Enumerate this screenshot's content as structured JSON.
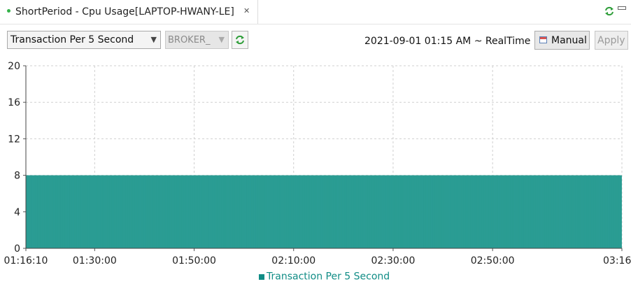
{
  "tab": {
    "title": "ShortPeriod - Cpu Usage[LAPTOP-HWANY-LE]",
    "close_icon": "close-icon"
  },
  "toolbar": {
    "metric_select": "Transaction Per 5 Second",
    "broker_select": "BROKER_",
    "date_range": "2021-09-01 01:15 AM ~ RealTime",
    "manual_label": "Manual",
    "apply_label": "Apply"
  },
  "colors": {
    "series": "#2a9c93",
    "series_dark": "#118d86",
    "grid": "#cfcfcf"
  },
  "chart_data": {
    "type": "bar",
    "ylim": [
      0,
      20
    ],
    "yticks": [
      "0",
      "4",
      "8",
      "12",
      "16",
      "20"
    ],
    "x_ticks": [
      "01:16:10",
      "01:30:00",
      "01:50:00",
      "02:10:00",
      "02:30:00",
      "02:50:00",
      "03:16"
    ],
    "x_tick_minutes": [
      76.17,
      90,
      110,
      130,
      150,
      170,
      196
    ],
    "x_range_minutes": [
      76.17,
      196
    ],
    "series": [
      {
        "name": "Transaction Per 5 Second",
        "value": 8,
        "interval_seconds": 5
      }
    ],
    "grid": true,
    "legend": "bottom"
  }
}
